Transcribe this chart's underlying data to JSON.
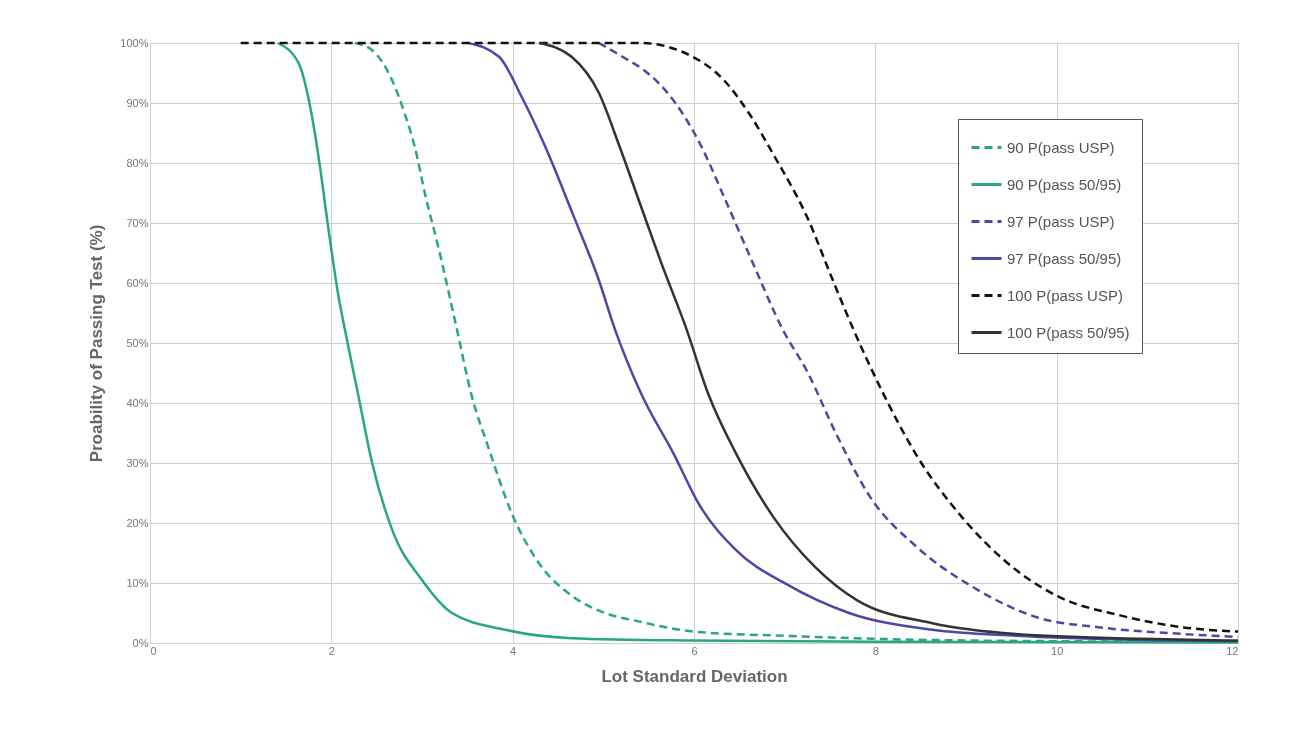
{
  "chart_data": {
    "type": "line",
    "xlabel": "Lot Standard Deviation",
    "ylabel": "Proability of Passing Test (%)",
    "xlim": [
      0,
      12
    ],
    "xticks": [
      0,
      2,
      4,
      6,
      8,
      10,
      12
    ],
    "ylim": [
      0,
      100
    ],
    "yticks": [
      {
        "value": 0,
        "label": "0%"
      },
      {
        "value": 10,
        "label": "10%"
      },
      {
        "value": 20,
        "label": "20%"
      },
      {
        "value": 30,
        "label": "30%"
      },
      {
        "value": 40,
        "label": "40%"
      },
      {
        "value": 50,
        "label": "50%"
      },
      {
        "value": 60,
        "label": "60%"
      },
      {
        "value": 70,
        "label": "70%"
      },
      {
        "value": 80,
        "label": "80%"
      },
      {
        "value": 90,
        "label": "90%"
      },
      {
        "value": 100,
        "label": "100%"
      }
    ],
    "grid": true,
    "legend": "top right",
    "marker": "none",
    "series": [
      {
        "name": "90 P(pass USP)",
        "color": "#2aa87c",
        "line_style": "dashed",
        "x": [
          2.26,
          2.45,
          2.67,
          2.81,
          2.92,
          3.04,
          3.18,
          3.37,
          3.55,
          3.73,
          3.99,
          4.29,
          4.66,
          5.02,
          5.39,
          6,
          7,
          8,
          10,
          12
        ],
        "values": [
          100,
          98.8,
          93.8,
          88.2,
          82.7,
          74.4,
          66,
          53.3,
          41.1,
          32.7,
          21.6,
          13.3,
          7.8,
          5.0,
          3.6,
          1.9,
          1.2,
          0.7,
          0.3,
          0.2
        ]
      },
      {
        "name": "90 P(pass 50/95)",
        "color": "#2aa87c",
        "line_style": "solid",
        "x": [
          1.41,
          1.64,
          1.78,
          1.87,
          1.97,
          2.08,
          2.15,
          2.3,
          2.45,
          2.67,
          3.0,
          3.33,
          3.92,
          4.65,
          6,
          8,
          12
        ],
        "values": [
          100,
          96.6,
          88.3,
          79.9,
          68.8,
          57.7,
          52.2,
          41.1,
          30,
          18.9,
          10.5,
          5.0,
          2.2,
          0.8,
          0.4,
          0.2,
          0.1
        ]
      },
      {
        "name": "97 P(pass USP)",
        "color": "#4a4aa6",
        "line_style": "dashed",
        "x": [
          4.95,
          5.28,
          5.41,
          5.78,
          6.06,
          6.33,
          6.65,
          6.98,
          7.25,
          7.57,
          7.94,
          8.45,
          9.09,
          9.78,
          10.48,
          11.4,
          12
        ],
        "values": [
          100,
          97.1,
          95.9,
          90.3,
          83.4,
          74.4,
          63.3,
          52.2,
          45.2,
          34.8,
          24.4,
          16.1,
          9.2,
          4.3,
          2.6,
          1.5,
          1.0
        ]
      },
      {
        "name": "97 P(pass 50/95)",
        "color": "#4a4aa6",
        "line_style": "solid",
        "x": [
          3.51,
          3.85,
          4.1,
          4.36,
          4.66,
          4.95,
          5.13,
          5.41,
          5.78,
          6.06,
          6.47,
          7.02,
          7.71,
          8.63,
          9.55,
          10.94,
          12
        ],
        "values": [
          100,
          97.7,
          91,
          82.7,
          71.6,
          60.5,
          52.2,
          41.8,
          31.4,
          23.0,
          15.4,
          9.8,
          5.0,
          2.2,
          1.2,
          0.5,
          0.3
        ]
      },
      {
        "name": "100 P(pass USP)",
        "color": "#111111",
        "line_style": "dashed",
        "x": [
          1,
          5.41,
          5.96,
          6.33,
          6.61,
          6.88,
          7.25,
          7.53,
          7.76,
          8.08,
          8.45,
          8.96,
          9.46,
          10.01,
          10.7,
          11.4,
          12
        ],
        "values": [
          100,
          100,
          97.9,
          93.8,
          88.2,
          81.3,
          70.9,
          60.5,
          52.2,
          41.8,
          31.4,
          20.9,
          13.3,
          7.8,
          4.6,
          2.6,
          1.9
        ]
      },
      {
        "name": "100 P(pass 50/95)",
        "color": "#333333",
        "line_style": "solid",
        "x": [
          4.29,
          4.65,
          4.95,
          5.18,
          5.41,
          5.64,
          5.92,
          6.15,
          6.47,
          6.88,
          7.34,
          7.8,
          8.63,
          9.55,
          10.94,
          12
        ],
        "values": [
          100,
          97.7,
          91.7,
          82.7,
          73,
          63.3,
          52.2,
          41.8,
          31.4,
          20.9,
          12.6,
          7.1,
          3.3,
          1.5,
          0.7,
          0.4
        ]
      }
    ]
  }
}
